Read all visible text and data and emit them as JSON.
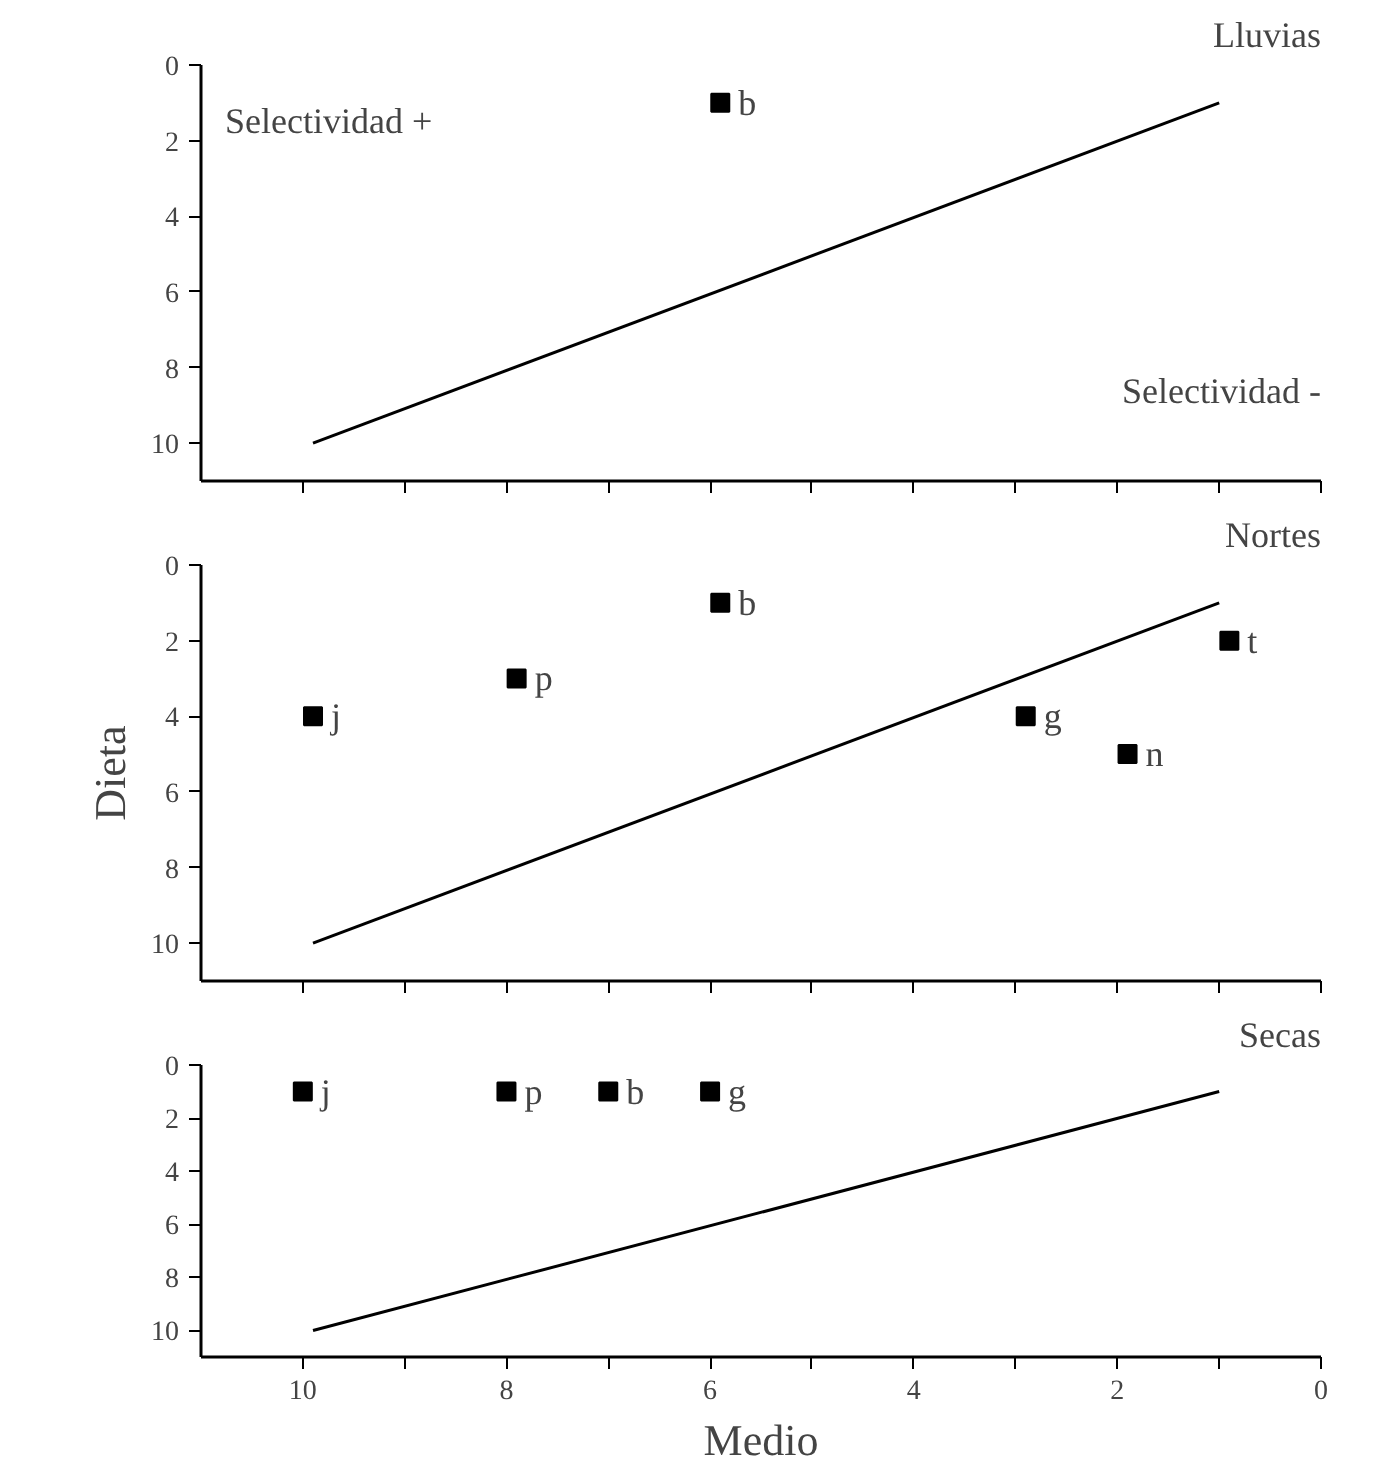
{
  "chart_data": [
    {
      "type": "scatter",
      "title": "Lluvias",
      "grid": false,
      "tick_labels": "y",
      "xlim": [
        11,
        0
      ],
      "ylim": [
        11,
        0
      ],
      "xticks": [
        10,
        {
          "value": 9,
          "label": null
        },
        8,
        {
          "value": 7,
          "label": null
        },
        6,
        {
          "value": 5,
          "label": null
        },
        4,
        {
          "value": 3,
          "label": null
        },
        2,
        {
          "value": 1,
          "label": null
        },
        0
      ],
      "yticks": [
        0,
        2,
        4,
        6,
        8,
        10
      ],
      "series": [
        {
          "marker": "square",
          "color": "#000000",
          "x": [
            5.9
          ],
          "values": [
            1
          ]
        },
        {
          "type": "line",
          "marker": "none",
          "color": "#000000",
          "x": [
            9.9,
            1.0
          ],
          "values": [
            10,
            1
          ]
        }
      ],
      "annotations": [
        "Selectividad +",
        "Selectividad -",
        {
          "text": "b",
          "x": 5.9,
          "y": 1
        }
      ]
    },
    {
      "type": "scatter",
      "title": "Nortes",
      "ylabel": "Dieta",
      "grid": false,
      "tick_labels": "y",
      "xlim": [
        11,
        0
      ],
      "ylim": [
        11,
        0
      ],
      "xticks": [
        10,
        {
          "value": 9,
          "label": null
        },
        8,
        {
          "value": 7,
          "label": null
        },
        6,
        {
          "value": 5,
          "label": null
        },
        4,
        {
          "value": 3,
          "label": null
        },
        2,
        {
          "value": 1,
          "label": null
        },
        0
      ],
      "yticks": [
        0,
        2,
        4,
        6,
        8,
        10
      ],
      "series": [
        {
          "marker": "square",
          "color": "#000000",
          "x": [
            9.9,
            7.9,
            5.9,
            2.9,
            1.9,
            0.9
          ],
          "values": [
            4,
            3,
            1,
            4,
            5,
            2
          ]
        },
        {
          "type": "line",
          "marker": "none",
          "color": "#000000",
          "x": [
            9.9,
            1.0
          ],
          "values": [
            10,
            1
          ]
        }
      ],
      "annotations": [
        {
          "text": "j",
          "x": 9.9,
          "y": 4
        },
        {
          "text": "p",
          "x": 7.9,
          "y": 3
        },
        {
          "text": "b",
          "x": 5.9,
          "y": 1
        },
        {
          "text": "g",
          "x": 2.9,
          "y": 4
        },
        {
          "text": "n",
          "x": 1.9,
          "y": 5
        },
        {
          "text": "t",
          "x": 0.9,
          "y": 2
        }
      ]
    },
    {
      "type": "scatter",
      "title": "Secas",
      "xlabel": "Medio",
      "grid": false,
      "xlim": [
        11,
        0
      ],
      "ylim": [
        11,
        0
      ],
      "xticks": [
        10,
        {
          "value": 9,
          "label": null
        },
        8,
        {
          "value": 7,
          "label": null
        },
        6,
        {
          "value": 5,
          "label": null
        },
        4,
        {
          "value": 3,
          "label": null
        },
        2,
        {
          "value": 1,
          "label": null
        },
        0
      ],
      "yticks": [
        0,
        2,
        4,
        6,
        8,
        10
      ],
      "series": [
        {
          "marker": "square",
          "color": "#000000",
          "x": [
            10,
            8,
            7,
            6
          ],
          "values": [
            1,
            1,
            1,
            1
          ]
        },
        {
          "type": "line",
          "marker": "none",
          "color": "#000000",
          "x": [
            9.9,
            1.0
          ],
          "values": [
            10,
            1
          ]
        }
      ],
      "annotations": [
        {
          "text": "j",
          "x": 10,
          "y": 1
        },
        {
          "text": "p",
          "x": 8,
          "y": 1
        },
        {
          "text": "b",
          "x": 7,
          "y": 1
        },
        {
          "text": "g",
          "x": 6,
          "y": 1
        }
      ]
    }
  ]
}
